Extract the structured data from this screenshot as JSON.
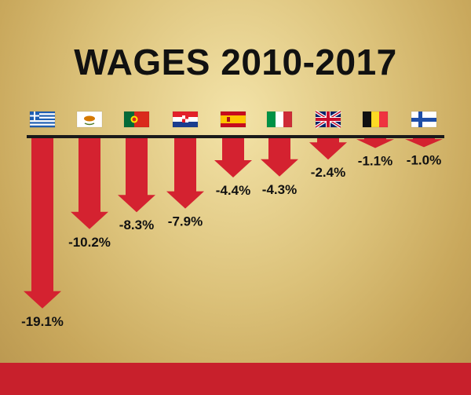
{
  "colors": {
    "arrow": "#d42230",
    "baseline": "#1a1a1a",
    "band": "#c8202c"
  },
  "chart_data": {
    "type": "bar",
    "title": "WAGES 2010-2017",
    "categories": [
      "Greece",
      "Cyprus",
      "Portugal",
      "Croatia",
      "Spain",
      "Italy",
      "United Kingdom",
      "Belgium",
      "Finland"
    ],
    "flags": [
      "greece-flag-icon",
      "cyprus-flag-icon",
      "portugal-flag-icon",
      "croatia-flag-icon",
      "spain-flag-icon",
      "italy-flag-icon",
      "uk-flag-icon",
      "belgium-flag-icon",
      "finland-flag-icon"
    ],
    "values": [
      -19.1,
      -10.2,
      -8.3,
      -7.9,
      -4.4,
      -4.3,
      -2.4,
      -1.1,
      -1.0
    ],
    "labels": [
      "-19.1%",
      "-10.2%",
      "-8.3%",
      "-7.9%",
      "-4.4%",
      "-4.3%",
      "-2.4%",
      "-1.1%",
      "-1.0%"
    ],
    "ylim": [
      -20,
      0
    ]
  }
}
